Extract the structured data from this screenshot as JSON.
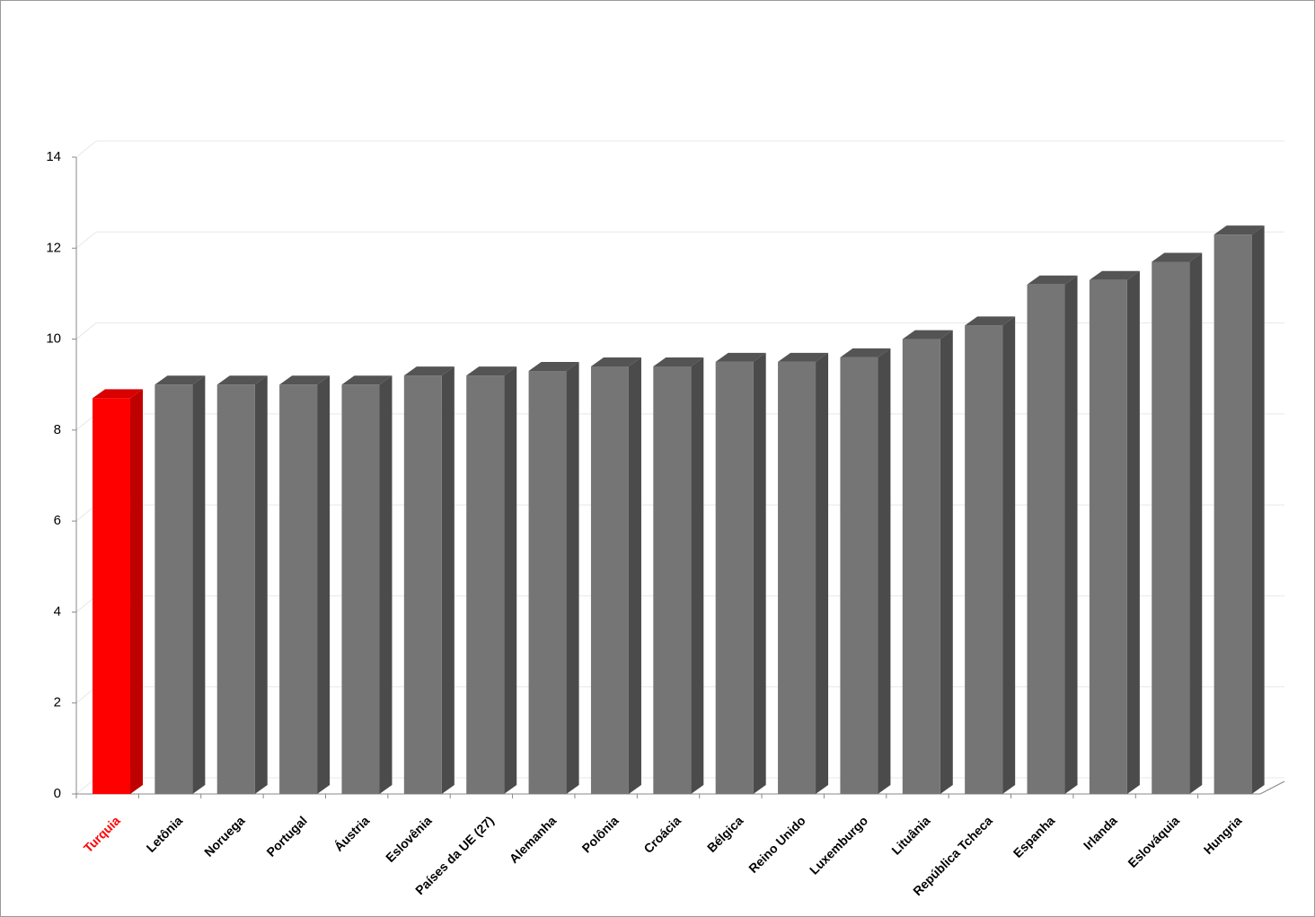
{
  "chart_data": {
    "type": "bar3d",
    "categories": [
      "Turquia",
      "Letônia",
      "Noruega",
      "Portugal",
      "Áustria",
      "Eslovênia",
      "Países da UE (27)",
      "Alemanha",
      "Polônia",
      "Croácia",
      "Bélgica",
      "Reino Unido",
      "Luxemburgo",
      "Lituânia",
      "República Tcheca",
      "Espanha",
      "Irlanda",
      "Eslováquia",
      "Hungria"
    ],
    "values": [
      8.7,
      9.0,
      9.0,
      9.0,
      9.0,
      9.2,
      9.2,
      9.3,
      9.4,
      9.4,
      9.5,
      9.5,
      9.6,
      10.0,
      10.3,
      11.2,
      11.3,
      11.7,
      12.3
    ],
    "colors": [
      "#ff0000",
      "#757575",
      "#757575",
      "#757575",
      "#757575",
      "#757575",
      "#757575",
      "#757575",
      "#757575",
      "#757575",
      "#757575",
      "#757575",
      "#757575",
      "#757575",
      "#757575",
      "#757575",
      "#757575",
      "#757575",
      "#757575"
    ],
    "ylim": [
      0,
      14
    ],
    "yticks": [
      0,
      2,
      4,
      6,
      8,
      10,
      12,
      14
    ],
    "grid": true
  }
}
